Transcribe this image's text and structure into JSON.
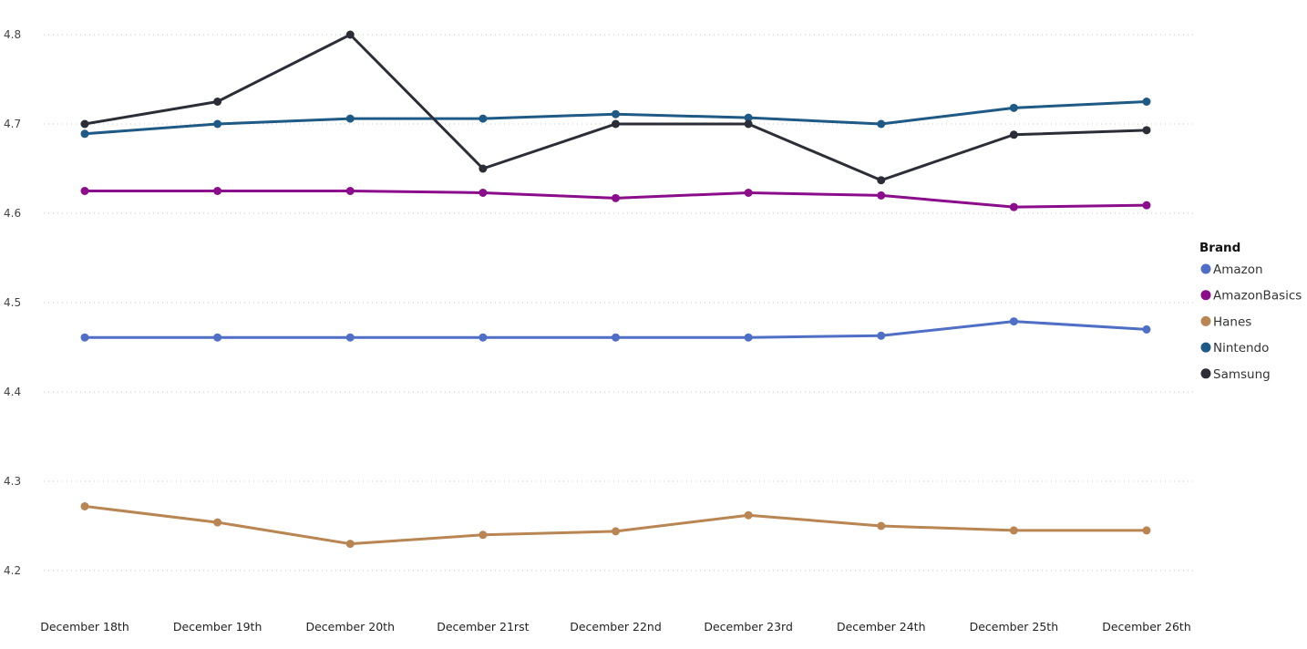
{
  "chart_data": {
    "type": "line",
    "title": "",
    "xlabel": "",
    "ylabel": "",
    "categories": [
      "December 18th",
      "December 19th",
      "December 20th",
      "December 21rst",
      "December 22nd",
      "December 23rd",
      "December 24th",
      "December 25th",
      "December 26th"
    ],
    "y_ticks": [
      "4.2",
      "4.3",
      "4.4",
      "4.5",
      "4.6",
      "4.7",
      "4.8"
    ],
    "ylim": [
      4.2,
      4.8
    ],
    "grid": true,
    "legend": {
      "title": "Brand",
      "position": "right"
    },
    "series": [
      {
        "name": "Amazon",
        "color": "#4f6fc6",
        "values": [
          4.461,
          4.461,
          4.461,
          4.461,
          4.461,
          4.461,
          4.463,
          4.479,
          4.47
        ]
      },
      {
        "name": "AmazonBasics",
        "color": "#8b0d8b",
        "values": [
          4.625,
          4.625,
          4.625,
          4.623,
          4.617,
          4.623,
          4.62,
          4.607,
          4.609
        ]
      },
      {
        "name": "Hanes",
        "color": "#b98553",
        "values": [
          4.272,
          4.254,
          4.23,
          4.24,
          4.244,
          4.262,
          4.25,
          4.245,
          4.245
        ]
      },
      {
        "name": "Nintendo",
        "color": "#1e5a85",
        "values": [
          4.689,
          4.7,
          4.706,
          4.706,
          4.711,
          4.707,
          4.7,
          4.718,
          4.725
        ]
      },
      {
        "name": "Samsung",
        "color": "#2b2e36",
        "values": [
          4.7,
          4.725,
          4.8,
          4.65,
          4.7,
          4.7,
          4.637,
          4.688,
          4.693
        ]
      }
    ]
  }
}
